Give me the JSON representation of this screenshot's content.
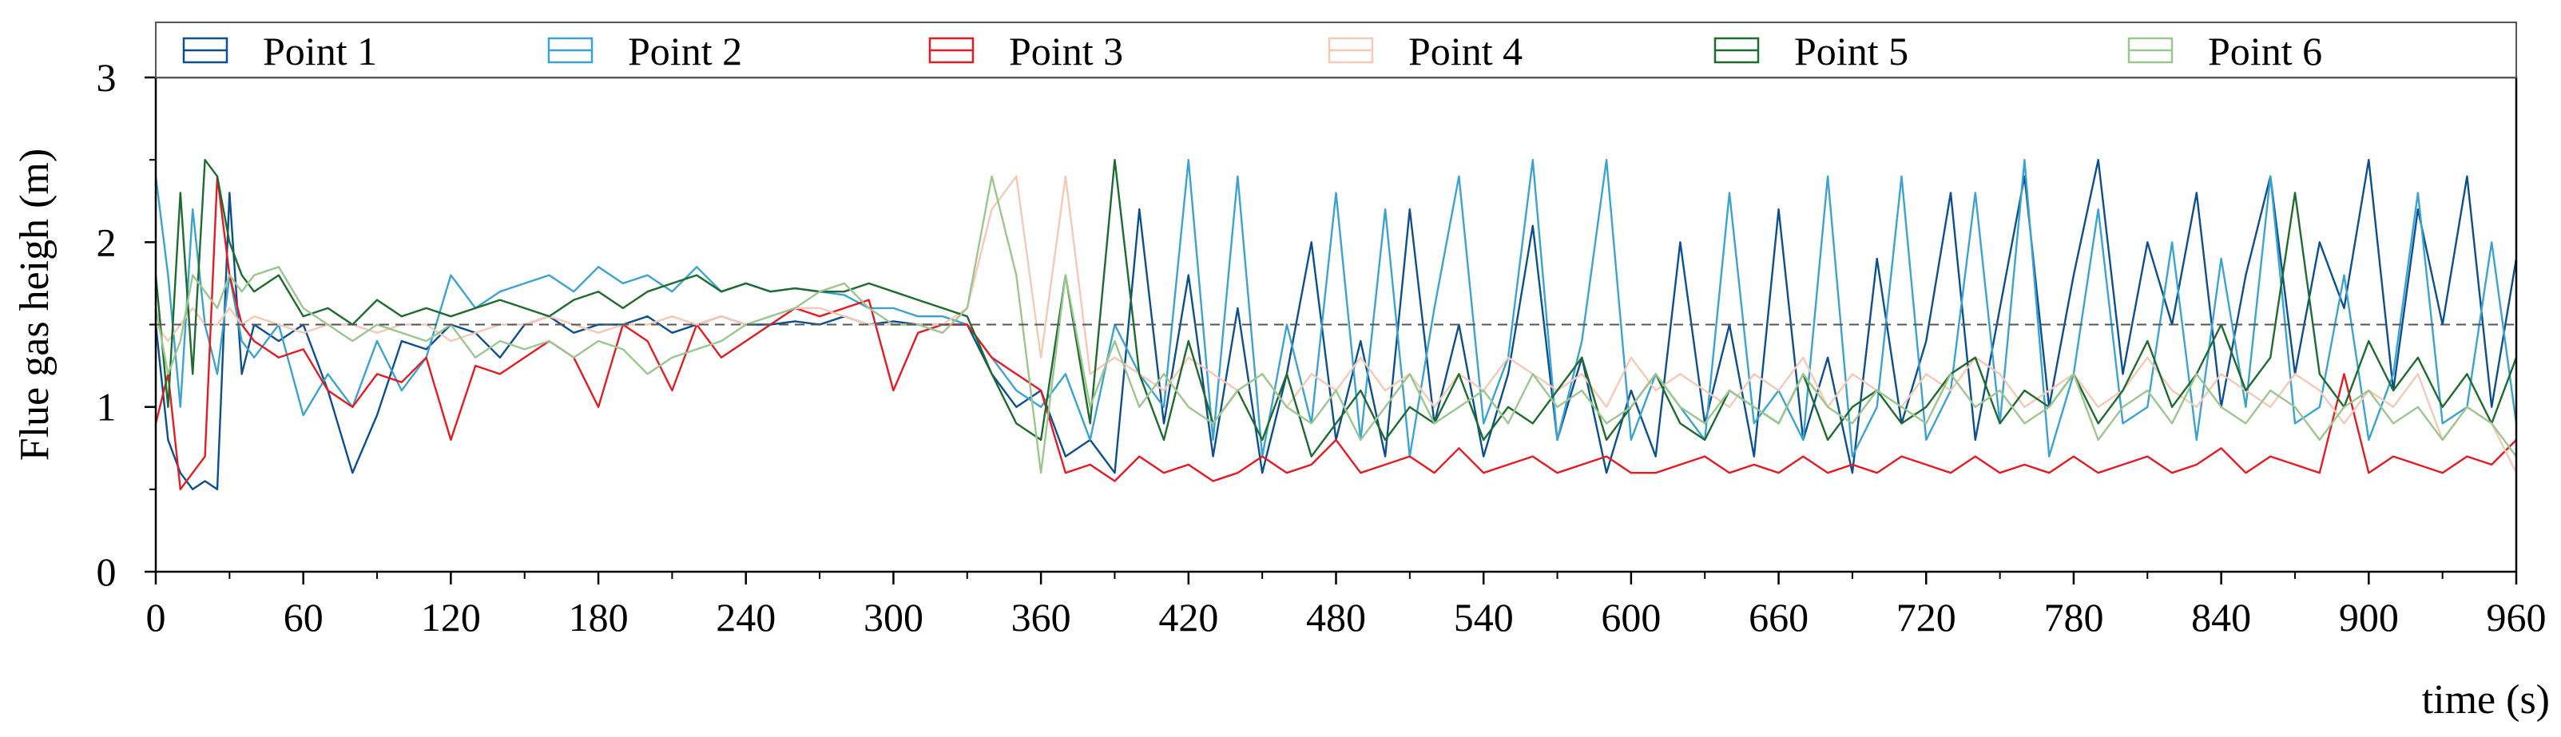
{
  "chart_data": {
    "type": "line",
    "xlabel": "time (s)",
    "ylabel": "Flue gas heigh (m)",
    "xlim": [
      0,
      960
    ],
    "ylim": [
      0,
      3
    ],
    "xticks": [
      0,
      60,
      120,
      180,
      240,
      300,
      360,
      420,
      480,
      540,
      600,
      660,
      720,
      780,
      840,
      900,
      960
    ],
    "yticks": [
      0,
      1,
      2,
      3
    ],
    "reference_line": {
      "y": 1.5,
      "style": "dashed"
    },
    "legend": {
      "placement": "top",
      "orientation": "horizontal"
    },
    "grid": false,
    "series": [
      {
        "name": "Point 1",
        "color": "#0b4f8f",
        "x": [
          0,
          5,
          10,
          15,
          20,
          25,
          30,
          35,
          40,
          50,
          60,
          70,
          80,
          90,
          100,
          110,
          120,
          130,
          140,
          150,
          160,
          170,
          180,
          190,
          200,
          210,
          220,
          230,
          240,
          250,
          260,
          270,
          280,
          290,
          300,
          310,
          320,
          330,
          340,
          350,
          360,
          370,
          380,
          390,
          400,
          410,
          420,
          430,
          440,
          450,
          460,
          470,
          480,
          490,
          500,
          510,
          520,
          530,
          540,
          550,
          560,
          570,
          580,
          590,
          600,
          610,
          620,
          630,
          640,
          650,
          660,
          670,
          680,
          690,
          700,
          710,
          720,
          730,
          740,
          750,
          760,
          770,
          780,
          790,
          800,
          810,
          820,
          830,
          840,
          850,
          860,
          870,
          880,
          890,
          900,
          910,
          920,
          930,
          940,
          950,
          960
        ],
        "values": [
          1.5,
          0.8,
          0.6,
          0.5,
          0.55,
          0.5,
          2.3,
          1.2,
          1.5,
          1.4,
          1.5,
          1.1,
          0.6,
          0.95,
          1.4,
          1.35,
          1.5,
          1.45,
          1.3,
          1.5,
          1.55,
          1.45,
          1.5,
          1.5,
          1.55,
          1.45,
          1.5,
          1.55,
          1.5,
          1.5,
          1.52,
          1.5,
          1.55,
          1.5,
          1.52,
          1.5,
          1.5,
          1.5,
          1.2,
          1.0,
          1.1,
          0.7,
          0.8,
          0.6,
          2.2,
          0.9,
          1.8,
          0.7,
          1.6,
          0.6,
          1.2,
          2.0,
          0.8,
          1.4,
          0.7,
          2.2,
          0.9,
          1.5,
          0.7,
          1.2,
          2.1,
          0.8,
          1.3,
          0.6,
          1.1,
          0.7,
          2.0,
          0.9,
          1.5,
          0.7,
          2.2,
          0.8,
          1.3,
          0.6,
          1.9,
          0.9,
          1.4,
          2.3,
          0.8,
          1.6,
          2.4,
          1.0,
          1.8,
          2.5,
          1.2,
          2.0,
          1.5,
          2.3,
          1.0,
          1.8,
          2.4,
          1.2,
          2.0,
          1.6,
          2.5,
          1.1,
          2.2,
          1.5,
          2.4,
          1.0,
          1.9
        ]
      },
      {
        "name": "Point 2",
        "color": "#3ba3d0",
        "x": [
          0,
          5,
          10,
          15,
          20,
          25,
          30,
          35,
          40,
          50,
          60,
          70,
          80,
          90,
          100,
          110,
          120,
          130,
          140,
          150,
          160,
          170,
          180,
          190,
          200,
          210,
          220,
          230,
          240,
          250,
          260,
          270,
          280,
          290,
          300,
          310,
          320,
          330,
          340,
          350,
          360,
          370,
          380,
          390,
          400,
          410,
          420,
          430,
          440,
          450,
          460,
          470,
          480,
          490,
          500,
          510,
          520,
          530,
          540,
          550,
          560,
          570,
          580,
          590,
          600,
          610,
          620,
          630,
          640,
          650,
          660,
          670,
          680,
          690,
          700,
          710,
          720,
          730,
          740,
          750,
          760,
          770,
          780,
          790,
          800,
          810,
          820,
          830,
          840,
          850,
          860,
          870,
          880,
          890,
          900,
          910,
          920,
          930,
          940,
          950,
          960
        ],
        "values": [
          2.4,
          1.8,
          1.0,
          2.2,
          1.5,
          1.2,
          1.8,
          1.4,
          1.3,
          1.5,
          0.95,
          1.2,
          1.0,
          1.4,
          1.1,
          1.3,
          1.8,
          1.6,
          1.7,
          1.75,
          1.8,
          1.7,
          1.85,
          1.75,
          1.8,
          1.7,
          1.85,
          1.7,
          1.75,
          1.7,
          1.72,
          1.7,
          1.68,
          1.6,
          1.6,
          1.55,
          1.55,
          1.5,
          1.3,
          1.1,
          1.0,
          1.2,
          0.8,
          1.5,
          1.2,
          1.0,
          2.5,
          0.8,
          2.4,
          0.7,
          1.5,
          0.9,
          2.3,
          0.8,
          2.2,
          0.7,
          1.6,
          2.4,
          0.9,
          1.3,
          2.5,
          0.8,
          1.4,
          2.5,
          0.8,
          1.2,
          1.0,
          0.8,
          2.3,
          0.9,
          1.1,
          0.8,
          2.4,
          0.7,
          1.0,
          2.4,
          0.8,
          1.1,
          2.3,
          0.9,
          2.5,
          0.7,
          1.2,
          2.2,
          0.9,
          1.0,
          2.0,
          0.8,
          1.9,
          1.0,
          2.4,
          0.9,
          1.0,
          1.8,
          0.8,
          1.2,
          2.3,
          0.9,
          1.0,
          2.0,
          0.9
        ]
      },
      {
        "name": "Point 3",
        "color": "#e31b23",
        "x": [
          0,
          5,
          10,
          15,
          20,
          25,
          30,
          35,
          40,
          50,
          60,
          70,
          80,
          90,
          100,
          110,
          120,
          130,
          140,
          150,
          160,
          170,
          180,
          190,
          200,
          210,
          220,
          230,
          240,
          250,
          260,
          270,
          280,
          290,
          300,
          310,
          320,
          330,
          340,
          350,
          360,
          370,
          380,
          390,
          400,
          410,
          420,
          430,
          440,
          450,
          460,
          470,
          480,
          490,
          500,
          510,
          520,
          530,
          540,
          550,
          560,
          570,
          580,
          590,
          600,
          610,
          620,
          630,
          640,
          650,
          660,
          670,
          680,
          690,
          700,
          710,
          720,
          730,
          740,
          750,
          760,
          770,
          780,
          790,
          800,
          810,
          820,
          830,
          840,
          850,
          860,
          870,
          880,
          890,
          900,
          910,
          920,
          930,
          940,
          950,
          960
        ],
        "values": [
          0.9,
          1.2,
          0.5,
          0.6,
          0.7,
          2.4,
          1.8,
          1.5,
          1.4,
          1.3,
          1.35,
          1.1,
          1.0,
          1.2,
          1.15,
          1.3,
          0.8,
          1.25,
          1.2,
          1.3,
          1.4,
          1.3,
          1.0,
          1.5,
          1.4,
          1.1,
          1.5,
          1.3,
          1.4,
          1.5,
          1.6,
          1.55,
          1.6,
          1.65,
          1.1,
          1.45,
          1.5,
          1.5,
          1.3,
          1.2,
          1.1,
          0.6,
          0.65,
          0.55,
          0.7,
          0.6,
          0.65,
          0.55,
          0.6,
          0.7,
          0.6,
          0.65,
          0.8,
          0.6,
          0.65,
          0.7,
          0.6,
          0.75,
          0.6,
          0.65,
          0.7,
          0.6,
          0.65,
          0.7,
          0.6,
          0.6,
          0.65,
          0.7,
          0.6,
          0.65,
          0.6,
          0.7,
          0.6,
          0.65,
          0.6,
          0.7,
          0.65,
          0.6,
          0.7,
          0.6,
          0.65,
          0.6,
          0.7,
          0.6,
          0.65,
          0.7,
          0.6,
          0.65,
          0.75,
          0.6,
          0.7,
          0.65,
          0.6,
          1.2,
          0.6,
          0.7,
          0.65,
          0.6,
          0.7,
          0.65,
          0.8
        ]
      },
      {
        "name": "Point 4",
        "color": "#f5c9b5",
        "x": [
          0,
          5,
          10,
          15,
          20,
          25,
          30,
          35,
          40,
          50,
          60,
          70,
          80,
          90,
          100,
          110,
          120,
          130,
          140,
          150,
          160,
          170,
          180,
          190,
          200,
          210,
          220,
          230,
          240,
          250,
          260,
          270,
          280,
          290,
          300,
          310,
          320,
          330,
          340,
          350,
          360,
          370,
          380,
          390,
          400,
          410,
          420,
          430,
          440,
          450,
          460,
          470,
          480,
          490,
          500,
          510,
          520,
          530,
          540,
          550,
          560,
          570,
          580,
          590,
          600,
          610,
          620,
          630,
          640,
          650,
          660,
          670,
          680,
          690,
          700,
          710,
          720,
          730,
          740,
          750,
          760,
          770,
          780,
          790,
          800,
          810,
          820,
          830,
          840,
          850,
          860,
          870,
          880,
          890,
          900,
          910,
          920,
          930,
          940,
          950,
          960
        ],
        "values": [
          1.5,
          1.4,
          1.5,
          1.6,
          1.5,
          1.5,
          1.6,
          1.5,
          1.55,
          1.5,
          1.45,
          1.5,
          1.5,
          1.45,
          1.5,
          1.5,
          1.4,
          1.45,
          1.5,
          1.5,
          1.55,
          1.5,
          1.45,
          1.5,
          1.5,
          1.55,
          1.5,
          1.55,
          1.5,
          1.55,
          1.6,
          1.6,
          1.55,
          1.5,
          1.5,
          1.5,
          1.5,
          1.6,
          2.2,
          2.4,
          1.3,
          2.4,
          1.2,
          1.3,
          1.2,
          1.1,
          1.3,
          1.2,
          1.1,
          1.2,
          1.0,
          1.2,
          1.1,
          1.3,
          1.1,
          1.2,
          1.0,
          1.2,
          1.1,
          1.3,
          1.2,
          1.1,
          1.2,
          1.0,
          1.3,
          1.1,
          1.2,
          1.1,
          1.0,
          1.2,
          1.1,
          1.3,
          1.0,
          1.2,
          1.1,
          1.0,
          1.2,
          1.1,
          1.3,
          1.2,
          1.0,
          1.1,
          1.2,
          1.0,
          1.1,
          1.3,
          1.1,
          1.0,
          1.2,
          1.1,
          1.0,
          1.2,
          1.1,
          0.9,
          1.1,
          1.0,
          1.2,
          0.8,
          1.0,
          0.9,
          0.6
        ]
      },
      {
        "name": "Point 5",
        "color": "#1e6b2e",
        "x": [
          0,
          5,
          10,
          15,
          20,
          25,
          30,
          35,
          40,
          50,
          60,
          70,
          80,
          90,
          100,
          110,
          120,
          130,
          140,
          150,
          160,
          170,
          180,
          190,
          200,
          210,
          220,
          230,
          240,
          250,
          260,
          270,
          280,
          290,
          300,
          310,
          320,
          330,
          340,
          350,
          360,
          370,
          380,
          390,
          400,
          410,
          420,
          430,
          440,
          450,
          460,
          470,
          480,
          490,
          500,
          510,
          520,
          530,
          540,
          550,
          560,
          570,
          580,
          590,
          600,
          610,
          620,
          630,
          640,
          650,
          660,
          670,
          680,
          690,
          700,
          710,
          720,
          730,
          740,
          750,
          760,
          770,
          780,
          790,
          800,
          810,
          820,
          830,
          840,
          850,
          860,
          870,
          880,
          890,
          900,
          910,
          920,
          930,
          940,
          950,
          960
        ],
        "values": [
          1.8,
          1.0,
          2.3,
          1.2,
          2.5,
          2.4,
          2.0,
          1.8,
          1.7,
          1.8,
          1.55,
          1.6,
          1.5,
          1.65,
          1.55,
          1.6,
          1.55,
          1.6,
          1.65,
          1.6,
          1.55,
          1.65,
          1.7,
          1.6,
          1.7,
          1.75,
          1.8,
          1.7,
          1.75,
          1.7,
          1.72,
          1.7,
          1.7,
          1.75,
          1.7,
          1.65,
          1.6,
          1.55,
          1.2,
          0.9,
          0.8,
          1.8,
          0.9,
          2.5,
          1.2,
          0.8,
          1.4,
          0.9,
          1.1,
          0.8,
          1.2,
          0.7,
          0.9,
          1.1,
          0.8,
          1.0,
          0.9,
          1.2,
          0.8,
          1.0,
          0.9,
          1.1,
          1.3,
          0.8,
          1.0,
          1.2,
          0.9,
          0.8,
          1.1,
          1.0,
          0.9,
          1.2,
          0.8,
          1.0,
          1.1,
          0.9,
          1.0,
          1.2,
          1.3,
          0.9,
          1.1,
          1.0,
          1.2,
          0.9,
          1.1,
          1.4,
          1.0,
          1.2,
          1.5,
          1.1,
          1.3,
          2.3,
          1.2,
          1.0,
          1.4,
          1.1,
          1.3,
          1.0,
          1.2,
          0.9,
          1.3
        ]
      },
      {
        "name": "Point 6",
        "color": "#9bc78f",
        "x": [
          0,
          5,
          10,
          15,
          20,
          25,
          30,
          35,
          40,
          50,
          60,
          70,
          80,
          90,
          100,
          110,
          120,
          130,
          140,
          150,
          160,
          170,
          180,
          190,
          200,
          210,
          220,
          230,
          240,
          250,
          260,
          270,
          280,
          290,
          300,
          310,
          320,
          330,
          340,
          350,
          360,
          370,
          380,
          390,
          400,
          410,
          420,
          430,
          440,
          450,
          460,
          470,
          480,
          490,
          500,
          510,
          520,
          530,
          540,
          550,
          560,
          570,
          580,
          590,
          600,
          610,
          620,
          630,
          640,
          650,
          660,
          670,
          680,
          690,
          700,
          710,
          720,
          730,
          740,
          750,
          760,
          770,
          780,
          790,
          800,
          810,
          820,
          830,
          840,
          850,
          860,
          870,
          880,
          890,
          900,
          910,
          920,
          930,
          940,
          950,
          960
        ],
        "values": [
          1.6,
          1.2,
          1.4,
          1.8,
          1.7,
          1.6,
          1.8,
          1.7,
          1.8,
          1.85,
          1.6,
          1.5,
          1.4,
          1.5,
          1.45,
          1.4,
          1.5,
          1.3,
          1.4,
          1.35,
          1.4,
          1.3,
          1.4,
          1.35,
          1.2,
          1.3,
          1.35,
          1.4,
          1.5,
          1.55,
          1.6,
          1.7,
          1.75,
          1.6,
          1.5,
          1.5,
          1.45,
          1.6,
          2.4,
          1.8,
          0.6,
          1.8,
          1.0,
          1.4,
          1.0,
          1.2,
          1.0,
          0.9,
          1.1,
          1.2,
          1.0,
          0.9,
          1.1,
          0.8,
          1.0,
          1.2,
          0.9,
          1.0,
          1.1,
          0.9,
          1.2,
          1.0,
          1.1,
          0.9,
          1.0,
          1.2,
          1.0,
          0.9,
          1.1,
          1.0,
          0.9,
          1.2,
          1.0,
          0.9,
          1.1,
          1.0,
          0.9,
          1.2,
          1.0,
          1.1,
          0.9,
          1.0,
          1.2,
          0.8,
          1.0,
          1.1,
          0.9,
          1.2,
          1.0,
          0.9,
          1.1,
          1.0,
          0.8,
          1.0,
          1.1,
          0.9,
          1.0,
          0.8,
          1.0,
          0.9,
          0.7
        ]
      }
    ]
  }
}
